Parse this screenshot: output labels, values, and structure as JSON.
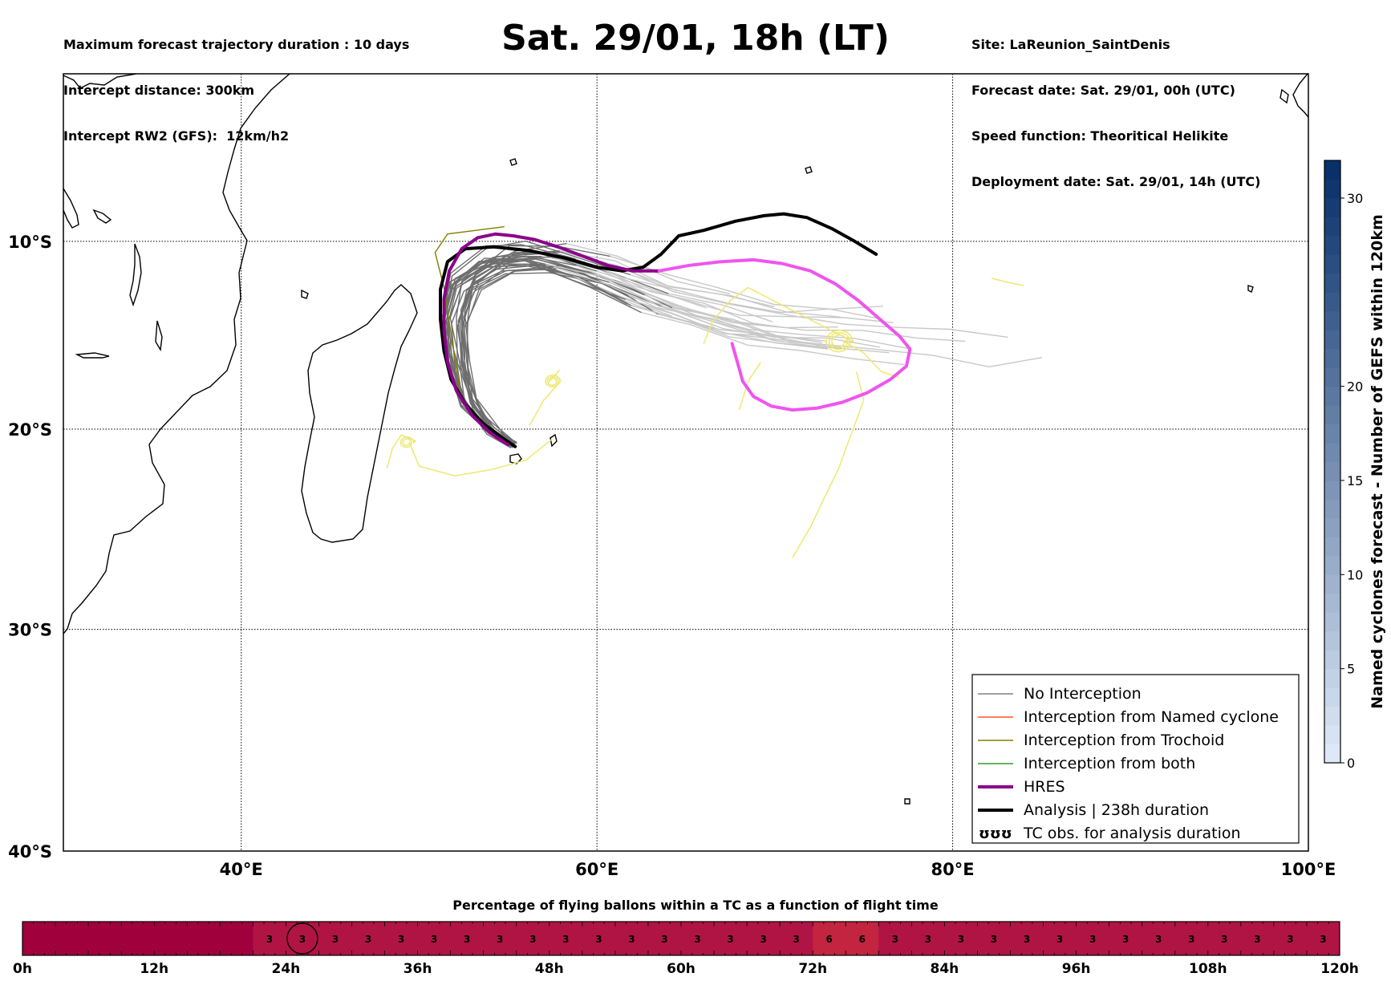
{
  "header": {
    "left_lines": [
      "Maximum forecast trajectory duration : 10 days",
      "Intercept distance: 300km",
      "Intercept RW2 (GFS):  12km/h2"
    ],
    "title": "Sat. 29/01, 18h (LT)",
    "right_lines": [
      "Site: LaReunion_SaintDenis",
      "Forecast date: Sat. 29/01, 00h (UTC)",
      "Speed function: Theoritical Helikite",
      "Deployment date: Sat. 29/01, 14h (UTC)"
    ]
  },
  "chart_data": [
    {
      "type": "line",
      "title": "Sat. 29/01, 18h (LT)",
      "xlim": [
        30,
        100
      ],
      "ylim": [
        -40,
        -0.8
      ],
      "x_ticks": [
        40,
        60,
        80,
        100
      ],
      "x_tick_labels": [
        "40°E",
        "60°E",
        "80°E",
        "100°E"
      ],
      "y_ticks": [
        -10,
        -20,
        -30,
        -40
      ],
      "y_tick_labels": [
        "10°S",
        "20°S",
        "30°S",
        "40°S"
      ],
      "grid": "dotted",
      "legend": {
        "placement": "bottom-right",
        "entries": [
          {
            "label": "No Interception",
            "color": "#808080",
            "style": "thin"
          },
          {
            "label": "Interception from Named cyclone",
            "color": "#ff5722",
            "style": "thin"
          },
          {
            "label": "Interception from Trochoid",
            "color": "#808000",
            "style": "thin"
          },
          {
            "label": "Interception from both",
            "color": "#2e9e2e",
            "style": "thin"
          },
          {
            "label": "HRES",
            "color": "#8b008b",
            "style": "thick"
          },
          {
            "label": "Analysis | 238h duration",
            "color": "#000000",
            "style": "thick"
          },
          {
            "label": "TC obs. for analysis duration",
            "color": "#000000",
            "style": "symbol",
            "symbol": "ʊʊʊ"
          }
        ]
      },
      "series": [
        {
          "role": "analysis",
          "color": "#000000",
          "x": [
            55.4,
            54.6,
            53.6,
            52.6,
            51.8,
            51.4,
            51.2,
            51.2,
            51.6,
            52.6,
            54.2,
            56.2,
            58.2,
            60,
            61.4,
            62.6,
            63.6,
            64.6,
            66,
            67.8,
            69.4,
            70.5,
            71.8,
            73.2,
            74.5,
            75.7
          ],
          "y": [
            -20.9,
            -20.4,
            -19.7,
            -18.7,
            -17.4,
            -15.9,
            -14.2,
            -12.6,
            -11.1,
            -10.4,
            -10.3,
            -10.5,
            -10.9,
            -11.4,
            -11.6,
            -11.4,
            -10.7,
            -9.7,
            -9.4,
            -8.9,
            -8.6,
            -8.5,
            -8.7,
            -9.3,
            -10,
            -10.7
          ]
        },
        {
          "role": "hres",
          "color": "#8b008b",
          "x": [
            55,
            54,
            53,
            52.1,
            51.6,
            51.4,
            51.4,
            51.7,
            52.4,
            53.3,
            54.3,
            55.3,
            56.5,
            57.8,
            59.2,
            60.6,
            62,
            63.5
          ],
          "y": [
            -20.8,
            -20.2,
            -19.3,
            -18,
            -16.5,
            -14.8,
            -13.1,
            -11.6,
            -10.4,
            -9.8,
            -9.6,
            -9.7,
            -9.9,
            -10.3,
            -10.8,
            -11.3,
            -11.6,
            -11.6
          ]
        },
        {
          "role": "hres-extension",
          "color": "#ee55ee",
          "x": [
            63.5,
            65.2,
            67,
            68.8,
            70.4,
            72,
            73.4,
            74.7,
            75.9,
            77,
            77.6,
            77.4,
            76.5,
            75.2,
            73.8,
            72.4,
            71,
            69.8,
            68.8,
            68.2,
            67.9,
            67.6
          ],
          "y": [
            -11.6,
            -11.3,
            -11.1,
            -11,
            -11.2,
            -11.6,
            -12.3,
            -13.2,
            -14.2,
            -15.1,
            -15.8,
            -16.7,
            -17.4,
            -18.1,
            -18.6,
            -18.9,
            -19,
            -18.8,
            -18.3,
            -17.5,
            -16.5,
            -15.5
          ]
        }
      ],
      "ensemble": {
        "count": 30,
        "dark_color": "#6e6e6e",
        "light_color": "#c8c8c8",
        "trochoid_color": "#808000",
        "tc_obs_color": "#eee870"
      }
    },
    {
      "type": "bar",
      "title": "Percentage of flying ballons within a TC as a function of flight time",
      "x_tick_labels": [
        "0h",
        "12h",
        "24h",
        "36h",
        "48h",
        "60h",
        "72h",
        "84h",
        "96h",
        "108h",
        "120h"
      ],
      "bin_width_hours": 3,
      "highlighted_label": "3",
      "bins": [
        {
          "from": 0,
          "to": 21,
          "value": null
        },
        {
          "from": 21,
          "to": 24,
          "value": "3"
        },
        {
          "from": 24,
          "to": 27,
          "value": "3"
        },
        {
          "from": 27,
          "to": 30,
          "value": "3"
        },
        {
          "from": 30,
          "to": 33,
          "value": "3"
        },
        {
          "from": 33,
          "to": 36,
          "value": "3"
        },
        {
          "from": 36,
          "to": 39,
          "value": "3"
        },
        {
          "from": 39,
          "to": 42,
          "value": "3"
        },
        {
          "from": 42,
          "to": 45,
          "value": "3"
        },
        {
          "from": 45,
          "to": 48,
          "value": "3"
        },
        {
          "from": 48,
          "to": 51,
          "value": "3"
        },
        {
          "from": 51,
          "to": 54,
          "value": "3"
        },
        {
          "from": 54,
          "to": 57,
          "value": "3"
        },
        {
          "from": 57,
          "to": 60,
          "value": "3"
        },
        {
          "from": 60,
          "to": 63,
          "value": "3"
        },
        {
          "from": 63,
          "to": 66,
          "value": "3"
        },
        {
          "from": 66,
          "to": 69,
          "value": "3"
        },
        {
          "from": 69,
          "to": 72,
          "value": "3"
        },
        {
          "from": 72,
          "to": 75,
          "value": "6"
        },
        {
          "from": 75,
          "to": 78,
          "value": "6"
        },
        {
          "from": 78,
          "to": 81,
          "value": "3"
        },
        {
          "from": 81,
          "to": 84,
          "value": "3"
        },
        {
          "from": 84,
          "to": 87,
          "value": "3"
        },
        {
          "from": 87,
          "to": 90,
          "value": "3"
        },
        {
          "from": 90,
          "to": 93,
          "value": "3"
        },
        {
          "from": 93,
          "to": 96,
          "value": "3"
        },
        {
          "from": 96,
          "to": 99,
          "value": "3"
        },
        {
          "from": 99,
          "to": 102,
          "value": "3"
        },
        {
          "from": 102,
          "to": 105,
          "value": "3"
        },
        {
          "from": 105,
          "to": 108,
          "value": "3"
        },
        {
          "from": 108,
          "to": 111,
          "value": "3"
        },
        {
          "from": 111,
          "to": 114,
          "value": "3"
        },
        {
          "from": 114,
          "to": 117,
          "value": "3"
        },
        {
          "from": 117,
          "to": 120,
          "value": "3"
        }
      ]
    },
    {
      "type": "heatmap",
      "label": "Named cyclones forecast - Number of GEFS within 120km",
      "range": [
        0,
        32
      ],
      "tick_values": [
        0,
        5,
        10,
        15,
        20,
        30
      ],
      "tick_labels": [
        "0",
        "5",
        "10",
        "15",
        "20",
        "30"
      ],
      "color_low": "#dde9f6",
      "color_high": "#08306b"
    }
  ]
}
